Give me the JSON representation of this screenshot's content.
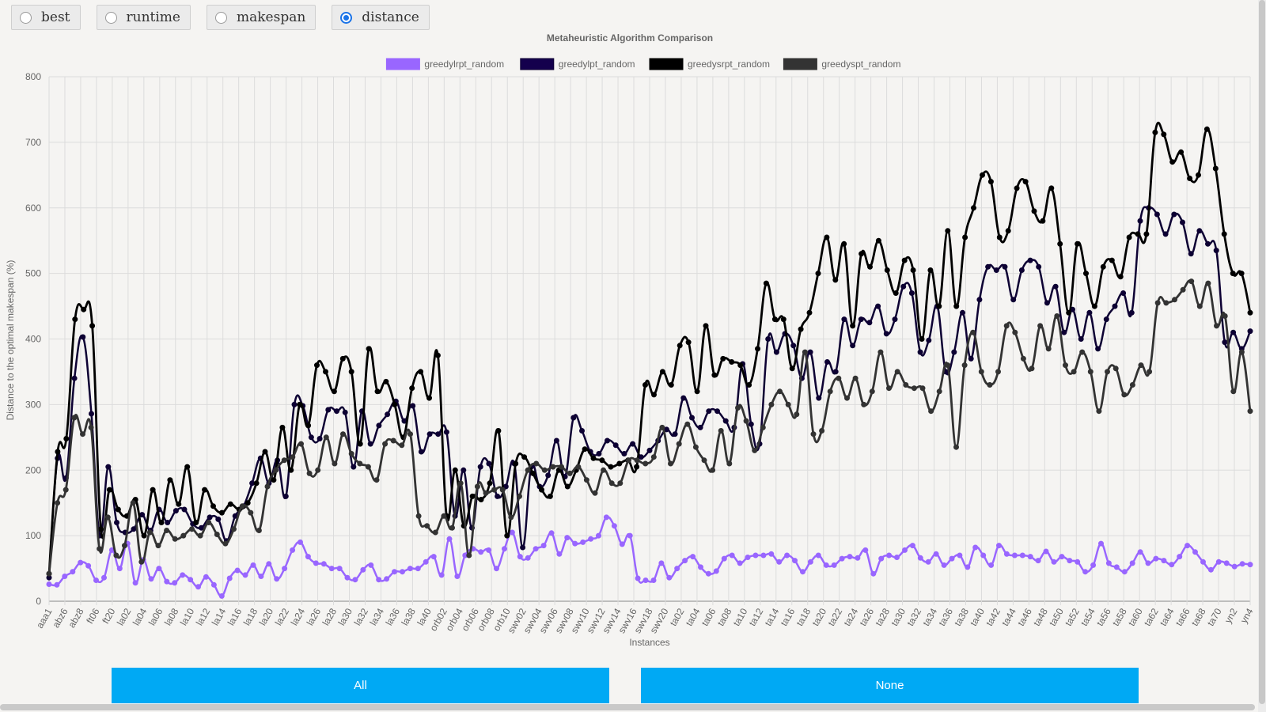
{
  "radios": [
    {
      "label": "best",
      "checked": false
    },
    {
      "label": "runtime",
      "checked": false
    },
    {
      "label": "makespan",
      "checked": false
    },
    {
      "label": "distance",
      "checked": true
    }
  ],
  "buttons": {
    "all": "All",
    "none": "None"
  },
  "chart_data": {
    "type": "line",
    "title": "Metaheuristic Algorithm Comparison",
    "xlabel": "Instances",
    "ylabel": "Distance to the optimal makespan (%)",
    "ylim": [
      0,
      800
    ],
    "yticks": [
      0,
      100,
      200,
      300,
      400,
      500,
      600,
      700,
      800
    ],
    "grid": true,
    "legend_position": "top",
    "x_tick_labels": [
      "aaa1",
      "abz6",
      "abz8",
      "ft06",
      "ft20",
      "la02",
      "la04",
      "la06",
      "la08",
      "la10",
      "la12",
      "la14",
      "la16",
      "la18",
      "la20",
      "la22",
      "la24",
      "la26",
      "la28",
      "la30",
      "la32",
      "la34",
      "la36",
      "la38",
      "la40",
      "orb02",
      "orb04",
      "orb06",
      "orb08",
      "orb10",
      "swv02",
      "swv04",
      "swv06",
      "swv08",
      "swv10",
      "swv12",
      "swv14",
      "swv16",
      "swv18",
      "swv20",
      "ta02",
      "ta04",
      "ta06",
      "ta08",
      "ta10",
      "ta12",
      "ta14",
      "ta16",
      "ta18",
      "ta20",
      "ta22",
      "ta24",
      "ta26",
      "ta28",
      "ta30",
      "ta32",
      "ta34",
      "ta36",
      "ta38",
      "ta40",
      "ta42",
      "ta44",
      "ta46",
      "ta48",
      "ta50",
      "ta52",
      "ta54",
      "ta56",
      "ta58",
      "ta60",
      "ta62",
      "ta64",
      "ta66",
      "ta68",
      "ta70",
      "yn2",
      "yn4"
    ],
    "series": [
      {
        "name": "greedylrpt_random",
        "color": "#9966ff",
        "legend_fill": "#9966ff",
        "width": 2.5,
        "anchors": [
          26,
          25,
          38,
          45,
          59,
          54,
          32,
          36,
          78,
          50,
          88,
          28,
          63,
          34,
          50,
          30,
          28,
          40,
          33,
          22,
          37,
          25,
          8,
          35,
          47,
          40,
          55,
          38,
          57,
          34,
          50,
          78,
          90,
          68,
          58,
          57,
          50,
          50,
          36,
          33,
          48,
          55,
          33,
          34,
          45,
          45,
          50,
          50,
          60,
          68,
          40,
          95,
          38,
          70,
          80,
          75,
          78,
          50,
          80,
          105,
          68,
          66,
          80,
          85,
          104,
          72,
          97,
          88,
          90,
          95,
          100,
          128,
          115,
          87,
          100,
          35,
          32,
          32,
          58,
          36,
          50,
          62,
          68,
          52,
          42,
          46,
          65,
          70,
          58,
          67,
          70,
          70,
          72,
          60,
          70,
          62,
          45,
          60,
          70,
          55,
          55,
          65,
          68,
          66,
          78,
          42,
          65,
          70,
          67,
          78,
          85,
          66,
          60,
          72,
          55,
          65,
          70,
          52,
          82,
          70,
          55,
          85,
          72,
          70,
          70,
          68,
          62,
          76,
          60,
          68,
          62,
          60,
          45,
          55,
          88,
          58,
          52,
          45,
          58,
          75,
          58,
          65,
          62,
          56,
          68,
          85,
          75,
          60,
          48,
          60,
          58,
          53,
          57,
          56
        ]
      },
      {
        "name": "greedylpt_random",
        "color": "#0d0033",
        "legend_fill": "#14004d",
        "width": 2.5,
        "anchors": [
          36,
          218,
          188,
          340,
          403,
          286,
          100,
          205,
          120,
          105,
          110,
          132,
          108,
          140,
          120,
          138,
          140,
          118,
          112,
          128,
          125,
          92,
          130,
          145,
          180,
          218,
          180,
          215,
          160,
          300,
          298,
          250,
          248,
          292,
          290,
          288,
          205,
          290,
          240,
          268,
          285,
          305,
          275,
          298,
          228,
          255,
          255,
          258,
          130,
          200,
          112,
          205,
          210,
          160,
          175,
          210,
          82,
          205,
          175,
          192,
          245,
          190,
          280,
          260,
          228,
          225,
          245,
          238,
          225,
          240,
          220,
          230,
          245,
          262,
          255,
          310,
          280,
          265,
          290,
          290,
          275,
          265,
          362,
          270,
          240,
          400,
          380,
          408,
          390,
          340,
          380,
          310,
          365,
          350,
          430,
          390,
          430,
          425,
          450,
          408,
          430,
          480,
          470,
          380,
          398,
          450,
          350,
          380,
          440,
          370,
          460,
          510,
          505,
          510,
          460,
          505,
          520,
          510,
          455,
          480,
          410,
          445,
          400,
          440,
          385,
          430,
          450,
          470,
          440,
          580,
          600,
          590,
          560,
          590,
          578,
          530,
          565,
          545,
          535,
          395,
          410,
          385,
          412
        ]
      },
      {
        "name": "greedysrpt_random",
        "color": "#000000",
        "legend_fill": "#000000",
        "width": 2.8,
        "anchors": [
          42,
          228,
          248,
          430,
          445,
          420,
          110,
          170,
          140,
          130,
          155,
          100,
          170,
          120,
          185,
          148,
          205,
          120,
          170,
          145,
          135,
          148,
          140,
          150,
          180,
          228,
          185,
          265,
          200,
          300,
          268,
          360,
          350,
          320,
          370,
          350,
          240,
          385,
          320,
          335,
          300,
          250,
          325,
          350,
          310,
          375,
          130,
          200,
          115,
          160,
          155,
          180,
          260,
          100,
          210,
          220,
          195,
          170,
          160,
          200,
          175,
          200,
          232,
          218,
          215,
          205,
          210,
          215,
          205,
          330,
          315,
          350,
          330,
          390,
          395,
          320,
          420,
          345,
          370,
          365,
          360,
          330,
          385,
          485,
          430,
          430,
          355,
          415,
          440,
          500,
          555,
          490,
          545,
          420,
          530,
          510,
          550,
          505,
          470,
          520,
          505,
          400,
          505,
          450,
          565,
          450,
          555,
          600,
          650,
          640,
          555,
          565,
          630,
          640,
          595,
          580,
          630,
          545,
          440,
          545,
          500,
          450,
          510,
          520,
          495,
          555,
          560,
          560,
          715,
          712,
          670,
          685,
          645,
          650,
          720,
          660,
          560,
          500,
          500,
          440
        ]
      },
      {
        "name": "greedyspt_random",
        "color": "#333333",
        "legend_fill": "#333333",
        "width": 2.8,
        "anchors": [
          42,
          150,
          170,
          280,
          255,
          265,
          80,
          128,
          70,
          85,
          150,
          60,
          105,
          85,
          108,
          95,
          100,
          110,
          100,
          120,
          102,
          88,
          110,
          145,
          135,
          108,
          175,
          200,
          215,
          220,
          240,
          195,
          200,
          250,
          210,
          255,
          225,
          210,
          205,
          185,
          240,
          245,
          238,
          255,
          130,
          115,
          105,
          130,
          112,
          180,
          70,
          175,
          165,
          170,
          170,
          128,
          160,
          200,
          210,
          200,
          205,
          205,
          195,
          205,
          185,
          165,
          200,
          180,
          180,
          215,
          215,
          210,
          220,
          265,
          210,
          240,
          270,
          235,
          215,
          200,
          260,
          210,
          295,
          275,
          230,
          265,
          300,
          320,
          300,
          285,
          380,
          255,
          260,
          320,
          340,
          310,
          340,
          300,
          320,
          380,
          325,
          350,
          330,
          325,
          325,
          290,
          320,
          360,
          235,
          360,
          410,
          350,
          330,
          350,
          420,
          410,
          370,
          355,
          420,
          385,
          435,
          360,
          350,
          380,
          350,
          290,
          350,
          355,
          315,
          330,
          360,
          350,
          455,
          455,
          460,
          475,
          488,
          450,
          485,
          420,
          435,
          320,
          380,
          290
        ]
      }
    ]
  }
}
